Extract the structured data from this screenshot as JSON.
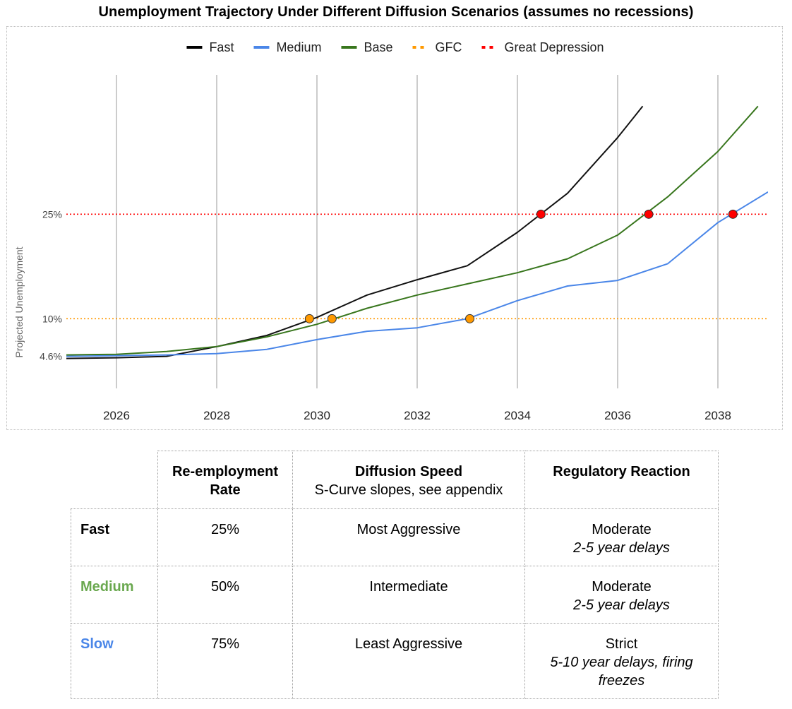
{
  "chart_data": {
    "type": "line",
    "title": "Unemployment Trajectory Under Different Diffusion Scenarios (assumes no recessions)",
    "ylabel": "Projected Unemployment",
    "xlabel": "",
    "x_ticks": [
      "2026",
      "2028",
      "2030",
      "2032",
      "2034",
      "2036",
      "2038"
    ],
    "xlim": [
      2025,
      2039
    ],
    "ylim": [
      0,
      45
    ],
    "y_ticks": [
      {
        "value": 4.6,
        "label": "4.6%"
      },
      {
        "value": 10,
        "label": "10%"
      },
      {
        "value": 25,
        "label": "25%"
      }
    ],
    "grid": "vertical",
    "legend_position": "top",
    "legend": [
      {
        "name": "Fast",
        "color": "#000000",
        "style": "solid"
      },
      {
        "name": "Medium",
        "color": "#4a86e8",
        "style": "solid"
      },
      {
        "name": "Base",
        "color": "#38761d",
        "style": "solid"
      },
      {
        "name": "GFC",
        "color": "#ff9900",
        "style": "dotted"
      },
      {
        "name": "Great Depression",
        "color": "#ff0000",
        "style": "dotted"
      }
    ],
    "series": [
      {
        "name": "Fast",
        "color": "#111111",
        "x": [
          2025,
          2026,
          2027,
          2028,
          2029,
          2030,
          2031,
          2032,
          2033,
          2034,
          2035,
          2036,
          2036.5
        ],
        "y": [
          4.3,
          4.4,
          4.6,
          6.0,
          7.6,
          10.2,
          13.4,
          15.6,
          17.6,
          22.4,
          28.0,
          36.0,
          40.5
        ]
      },
      {
        "name": "Medium",
        "color": "#4a86e8",
        "x": [
          2025,
          2026,
          2027,
          2028,
          2029,
          2030,
          2031,
          2032,
          2033,
          2034,
          2035,
          2036,
          2037,
          2038,
          2039
        ],
        "y": [
          4.6,
          4.7,
          4.8,
          5.0,
          5.6,
          7.0,
          8.2,
          8.7,
          10.0,
          12.6,
          14.7,
          15.5,
          17.9,
          23.8,
          28.2
        ]
      },
      {
        "name": "Base",
        "color": "#38761d",
        "x": [
          2025,
          2026,
          2027,
          2028,
          2029,
          2030,
          2031,
          2032,
          2033,
          2034,
          2035,
          2036,
          2037,
          2038,
          2038.8
        ],
        "y": [
          4.8,
          4.9,
          5.3,
          6.0,
          7.4,
          9.2,
          11.5,
          13.4,
          15.0,
          16.6,
          18.6,
          22.0,
          27.5,
          34.0,
          40.5
        ]
      }
    ],
    "reference_lines": [
      {
        "name": "GFC",
        "y": 10,
        "color": "#ff9900"
      },
      {
        "name": "Great Depression",
        "y": 25,
        "color": "#ff0000"
      }
    ],
    "crossing_markers": [
      {
        "x": 2029.85,
        "y": 10,
        "color": "#ff9900"
      },
      {
        "x": 2030.3,
        "y": 10,
        "color": "#ff9900"
      },
      {
        "x": 2033.05,
        "y": 10,
        "color": "#ff9900"
      },
      {
        "x": 2034.47,
        "y": 25,
        "color": "#ff0000"
      },
      {
        "x": 2036.62,
        "y": 25,
        "color": "#ff0000"
      },
      {
        "x": 2038.3,
        "y": 25,
        "color": "#ff0000"
      }
    ]
  },
  "table": {
    "headers": {
      "reemployment_line1": "Re-employment",
      "reemployment_line2": "Rate",
      "diffusion_title": "Diffusion Speed",
      "diffusion_sub": "S-Curve slopes, see appendix",
      "regulatory": "Regulatory Reaction"
    },
    "rows": [
      {
        "name": "Fast",
        "name_color": "#000000",
        "rate": "25%",
        "speed": "Most Aggressive",
        "reg": "Moderate",
        "reg_note": "2-5 year delays",
        "reg_note2": ""
      },
      {
        "name": "Medium",
        "name_color": "#6aa84f",
        "rate": "50%",
        "speed": "Intermediate",
        "reg": "Moderate",
        "reg_note": "2-5 year delays",
        "reg_note2": ""
      },
      {
        "name": "Slow",
        "name_color": "#4a86e8",
        "rate": "75%",
        "speed": "Least Aggressive",
        "reg": "Strict",
        "reg_note": "5-10 year delays, firing",
        "reg_note2": "freezes"
      }
    ]
  }
}
